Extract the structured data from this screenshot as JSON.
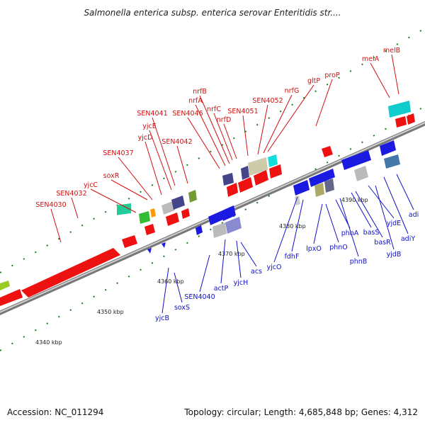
{
  "title": "Salmonella enterica subsp. enterica serovar Enteritidis str....",
  "accession": "Accession: NC_011294",
  "topology": "Topology: circular; Length: 4,685,848 bp; Genes: 4,312",
  "colors": {
    "forward_label": "#d01010",
    "reverse_label": "#1010c8",
    "forward_gene": "#ee1111",
    "reverse_gene": "#1a1ae0",
    "backbone": "#888888",
    "tick": "#1a7a1a"
  },
  "scale_labels": [
    "4340 kbp",
    "4350 kbp",
    "4360 kbp",
    "4370 kbp",
    "4380 kbp",
    "4390 kbp"
  ],
  "forward_labels": [
    "SEN4030",
    "SEN4032",
    "yjcC",
    "soxR",
    "SEN4037",
    "yjcD",
    "yjcE",
    "SEN4041",
    "SEN4042",
    "SEN4046",
    "nrfA",
    "nrfB",
    "nrfC",
    "nrfD",
    "SEN4051",
    "SEN4052",
    "nrfG",
    "gltP",
    "proP",
    "melA",
    "melB"
  ],
  "reverse_labels": [
    "yjcB",
    "soxS",
    "SEN4040",
    "actP",
    "yjcH",
    "acs",
    "yjcO",
    "fdhF",
    "lpxO",
    "phnO",
    "phnA",
    "phnB",
    "basS",
    "basR",
    "yjdE",
    "yjdB",
    "adiY",
    "adi"
  ]
}
